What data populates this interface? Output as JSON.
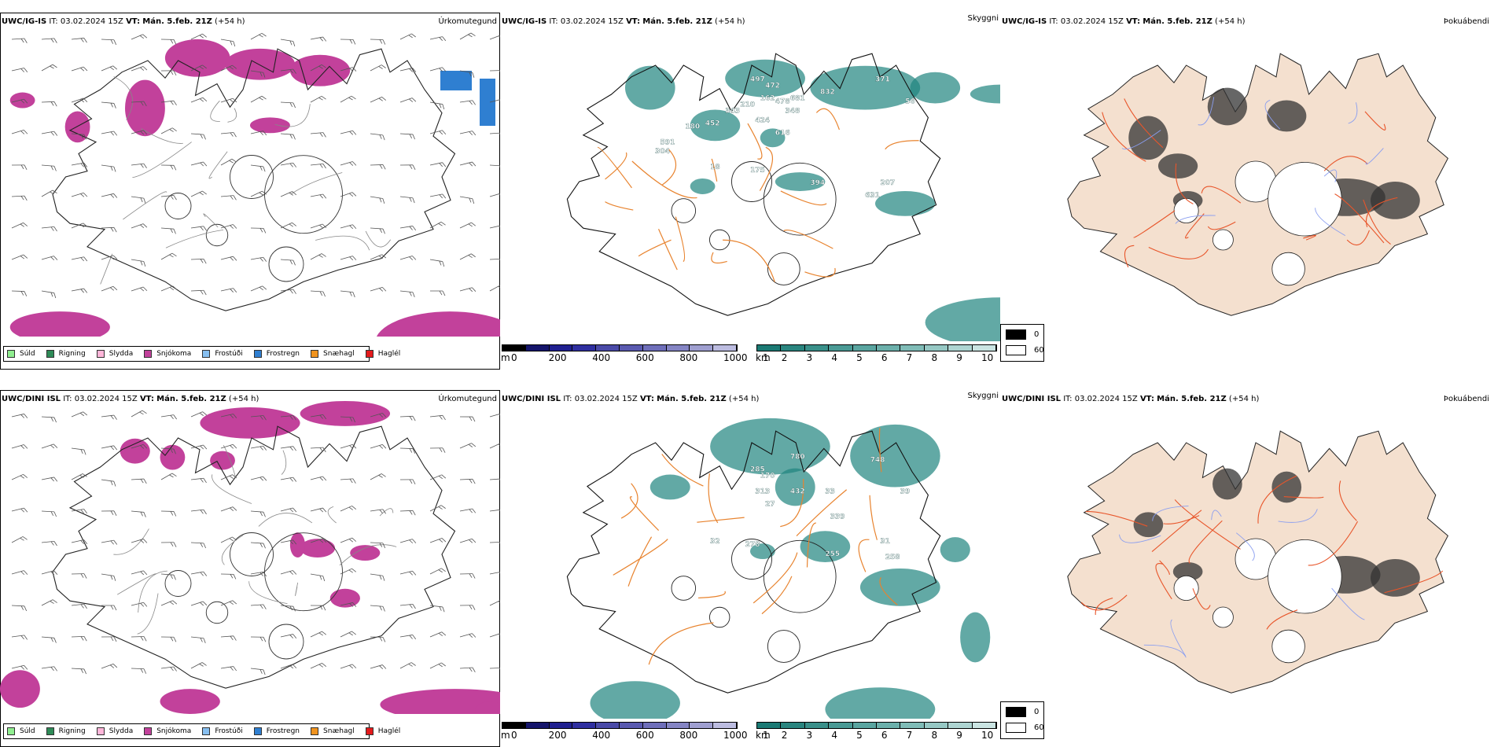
{
  "rows": [
    {
      "model": "UWC/IG-IS",
      "it_label": "IT:",
      "it_value": "03.02.2024 15Z",
      "vt_label": "VT:",
      "vt_value": "Mán. 5.feb. 21Z",
      "lead": "(+54 h)",
      "visibility_labels": [
        {
          "text": "497"
        },
        {
          "text": "472"
        },
        {
          "text": "162"
        },
        {
          "text": "478"
        },
        {
          "text": "681"
        },
        {
          "text": "210"
        },
        {
          "text": "343"
        },
        {
          "text": "832"
        },
        {
          "text": "371"
        },
        {
          "text": "348"
        },
        {
          "text": "424"
        },
        {
          "text": "452"
        },
        {
          "text": "180"
        },
        {
          "text": "616"
        },
        {
          "text": "591"
        },
        {
          "text": "304"
        },
        {
          "text": "18"
        },
        {
          "text": "175"
        },
        {
          "text": "394"
        },
        {
          "text": "207"
        },
        {
          "text": "631"
        },
        {
          "text": "56"
        }
      ]
    },
    {
      "model": "UWC/DINI ISL",
      "it_label": "IT:",
      "it_value": "03.02.2024 15Z",
      "vt_label": "VT:",
      "vt_value": "Mán. 5.feb. 21Z",
      "lead": "(+54 h)",
      "visibility_labels": [
        {
          "text": "780"
        },
        {
          "text": "748"
        },
        {
          "text": "285"
        },
        {
          "text": "170"
        },
        {
          "text": "313"
        },
        {
          "text": "432"
        },
        {
          "text": "27"
        },
        {
          "text": "33"
        },
        {
          "text": "339"
        },
        {
          "text": "39"
        },
        {
          "text": "32"
        },
        {
          "text": "278"
        },
        {
          "text": "255"
        },
        {
          "text": "258"
        },
        {
          "text": "31"
        }
      ]
    }
  ],
  "panel_titles": {
    "precip": "Úrkomutegund",
    "visibility": "Skyggni",
    "fog": "Þokuábendi"
  },
  "precip_legend": [
    {
      "label": "Súld",
      "color": "#90ee90"
    },
    {
      "label": "Rigning",
      "color": "#2e8b57"
    },
    {
      "label": "Slydda",
      "color": "#ffb6d9"
    },
    {
      "label": "Snjókoma",
      "color": "#c2419b"
    },
    {
      "label": "Frostúði",
      "color": "#87bff0"
    },
    {
      "label": "Frostregn",
      "color": "#2f7fd1"
    },
    {
      "label": "Snæhagl",
      "color": "#f0931e"
    },
    {
      "label": "Haglél",
      "color": "#e41a1c"
    }
  ],
  "cloud_base_bar": {
    "unit": "m",
    "ticks": [
      "0",
      "200",
      "400",
      "600",
      "800",
      "1000"
    ],
    "colors": [
      "#000000",
      "#15156b",
      "#202090",
      "#2f2fa0",
      "#4a4aa8",
      "#5a5ab0",
      "#6f6fba",
      "#8585c4",
      "#9f9fd0",
      "#bcbce0"
    ]
  },
  "visibility_bar": {
    "unit": "km",
    "ticks": [
      "1",
      "2",
      "3",
      "4",
      "5",
      "6",
      "7",
      "8",
      "9",
      "10"
    ],
    "colors": [
      "#1b7a74",
      "#2a857f",
      "#3a908a",
      "#4a9a95",
      "#5aa5a0",
      "#6cb0ab",
      "#80bcb7",
      "#96c8c4",
      "#aed5d2",
      "#cae4e2"
    ]
  },
  "fog_bar": {
    "ticks": [
      "0",
      "60"
    ]
  },
  "colors": {
    "snow": "#c2419b",
    "freezing_rain": "#2f7fd1",
    "visibility_teal": "#1f857f",
    "road_orange": "#e8832e",
    "fog_land": "#f4e0cf",
    "fog_road": "#e8552a",
    "fog_river": "#8a9ef0"
  }
}
